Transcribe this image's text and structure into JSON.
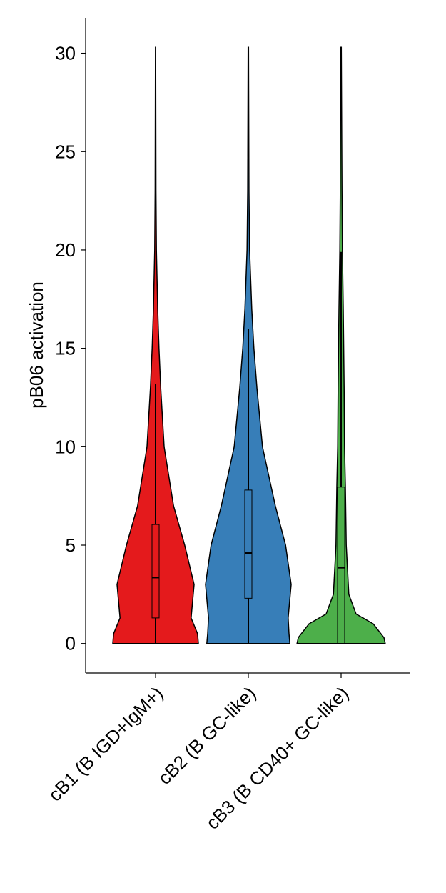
{
  "chart_data": {
    "type": "violin",
    "ylabel": "pB06 activation",
    "categories": [
      "cB1 (B IGD+IgM+)",
      "cB2 (B GC-like)",
      "cB3 (B CD40+ GC-like)"
    ],
    "ylim": [
      -1.5,
      31.8
    ],
    "yticks": [
      0,
      5,
      10,
      15,
      20,
      25,
      30
    ],
    "violins": [
      {
        "color": "#e41a1c",
        "kde_y": [
          0,
          0.5,
          1.3,
          3,
          5,
          7,
          10,
          13,
          15,
          17,
          20,
          23,
          30.3
        ],
        "kde_density": [
          1,
          0.98,
          0.83,
          0.9,
          0.68,
          0.42,
          0.2,
          0.12,
          0.08,
          0.05,
          0.02,
          0.01,
          0.003
        ],
        "q1": 1.3,
        "median": 3.35,
        "q3": 6.05,
        "whisker_low": 0,
        "whisker_high": 13.2
      },
      {
        "color": "#377eb8",
        "kde_y": [
          0,
          0.5,
          1.3,
          3,
          5,
          7,
          10,
          13,
          15,
          17,
          20,
          23,
          30.3
        ],
        "kde_density": [
          0.97,
          0.95,
          0.93,
          1.0,
          0.87,
          0.63,
          0.33,
          0.2,
          0.13,
          0.08,
          0.03,
          0.015,
          0.005
        ],
        "q1": 2.3,
        "median": 4.6,
        "q3": 7.8,
        "whisker_low": 0,
        "whisker_high": 16
      },
      {
        "color": "#4daf4a",
        "kde_y": [
          0,
          0.3,
          1,
          1.5,
          2.5,
          5,
          8,
          10,
          13,
          15,
          17,
          20,
          23,
          30.3
        ],
        "kde_density": [
          1.03,
          1.0,
          0.75,
          0.35,
          0.18,
          0.12,
          0.1,
          0.08,
          0.07,
          0.06,
          0.05,
          0.03,
          0.02,
          0.005
        ],
        "q1": 0,
        "median": 3.85,
        "q3": 7.95,
        "whisker_low": 0,
        "whisker_high": 19.9
      }
    ]
  }
}
